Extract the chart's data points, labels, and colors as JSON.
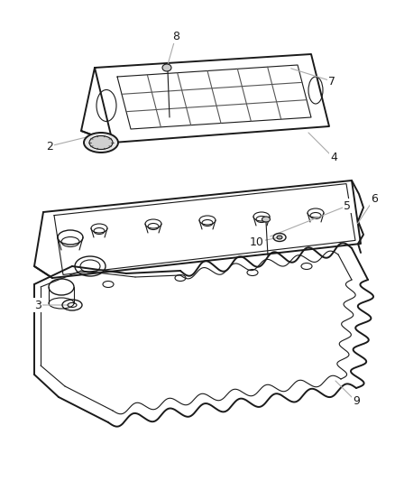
{
  "background_color": "#ffffff",
  "line_color": "#1a1a1a",
  "gray_color": "#888888",
  "label_fontsize": 9,
  "callout_line_color": "#aaaaaa"
}
